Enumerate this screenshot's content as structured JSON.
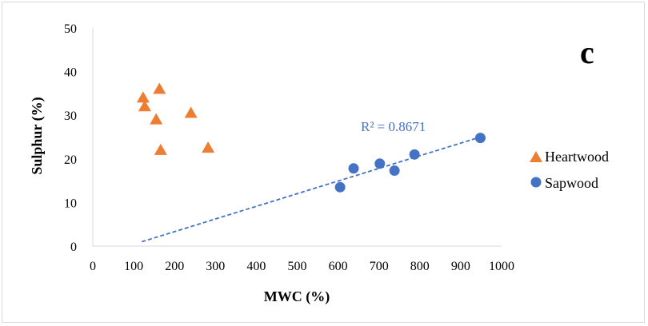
{
  "chart_data": {
    "type": "scatter",
    "panel_label": "c",
    "xlabel": "MWC (%)",
    "ylabel": "Sulphur (%)",
    "xlim": [
      0,
      1000
    ],
    "ylim": [
      0,
      50
    ],
    "x_ticks": [
      "0",
      "100",
      "200",
      "300",
      "400",
      "500",
      "600",
      "700",
      "800",
      "900",
      "1000"
    ],
    "y_ticks": [
      "0",
      "10",
      "20",
      "30",
      "40",
      "50"
    ],
    "grid": false,
    "legend_position": "right",
    "series": [
      {
        "name": "Heartwood",
        "marker": "triangle",
        "color": "#ED7D31",
        "points": [
          {
            "x": 123,
            "y": 34
          },
          {
            "x": 127,
            "y": 32
          },
          {
            "x": 155,
            "y": 29
          },
          {
            "x": 163,
            "y": 36
          },
          {
            "x": 166,
            "y": 22
          },
          {
            "x": 240,
            "y": 30.5
          },
          {
            "x": 282,
            "y": 22.5
          }
        ]
      },
      {
        "name": "Sapwood",
        "marker": "circle",
        "color": "#4472C4",
        "points": [
          {
            "x": 605,
            "y": 13.5
          },
          {
            "x": 638,
            "y": 17.8
          },
          {
            "x": 702,
            "y": 18.9
          },
          {
            "x": 738,
            "y": 17.3
          },
          {
            "x": 787,
            "y": 21
          },
          {
            "x": 948,
            "y": 24.8
          }
        ],
        "trendline": {
          "type": "linear",
          "style": "dashed",
          "x": [
            120,
            948
          ],
          "y": [
            1,
            25
          ],
          "label": "R² = 0.8671"
        }
      }
    ]
  }
}
